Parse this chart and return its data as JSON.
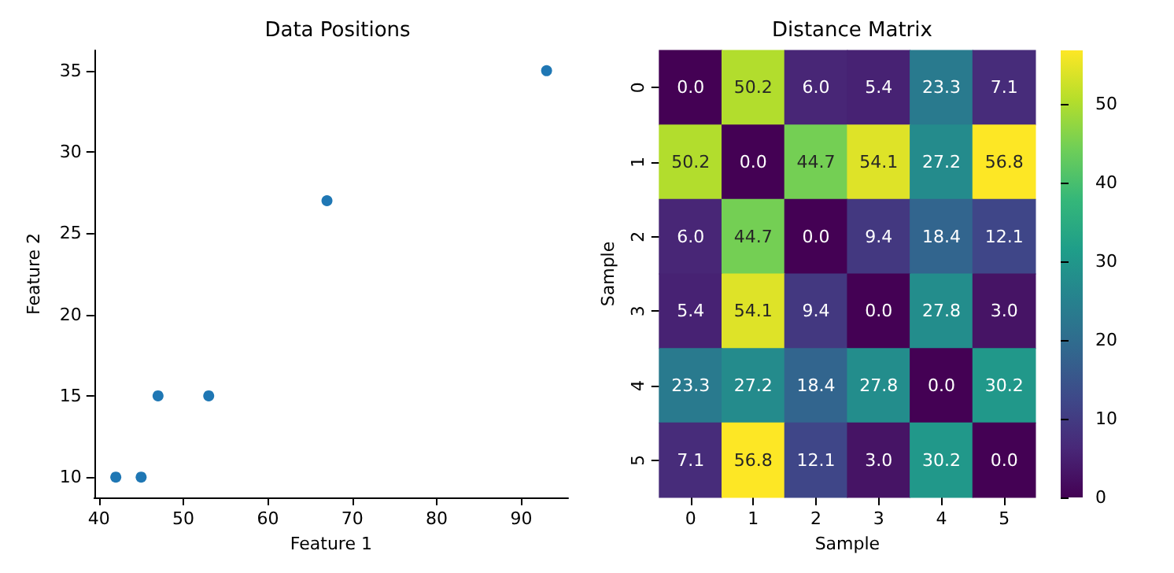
{
  "chart_data": [
    {
      "type": "scatter",
      "title": "Data Positions",
      "xlabel": "Feature 1",
      "ylabel": "Feature 2",
      "x": [
        42,
        45,
        47,
        53,
        67,
        93
      ],
      "values": [
        10,
        10,
        15,
        15,
        27,
        35
      ],
      "color": "#1f77b4",
      "xlim": [
        39.45,
        95.55
      ],
      "ylim": [
        8.75,
        36.25
      ],
      "xticks": [
        40,
        50,
        60,
        70,
        80,
        90
      ],
      "yticks": [
        10,
        15,
        20,
        25,
        30,
        35
      ],
      "marker": "circle"
    },
    {
      "type": "heatmap",
      "title": "Distance Matrix",
      "xlabel": "Sample",
      "ylabel": "Sample",
      "categories": [
        "0",
        "1",
        "2",
        "3",
        "4",
        "5"
      ],
      "y_categories": [
        "0",
        "1",
        "2",
        "3",
        "4",
        "5"
      ],
      "cells": [
        [
          0.0,
          50.2,
          6.0,
          5.4,
          23.3,
          7.1
        ],
        [
          50.2,
          0.0,
          44.7,
          54.1,
          27.2,
          56.8
        ],
        [
          6.0,
          44.7,
          0.0,
          9.4,
          18.4,
          12.1
        ],
        [
          5.4,
          54.1,
          9.4,
          0.0,
          27.8,
          3.0
        ],
        [
          23.3,
          27.2,
          18.4,
          27.8,
          0.0,
          30.2
        ],
        [
          7.1,
          56.8,
          12.1,
          3.0,
          30.2,
          0.0
        ]
      ],
      "cell_labels": [
        [
          "0.0",
          "50.2",
          "6.0",
          "5.4",
          "23.3",
          "7.1"
        ],
        [
          "50.2",
          "0.0",
          "44.7",
          "54.1",
          "27.2",
          "56.8"
        ],
        [
          "6.0",
          "44.7",
          "0.0",
          "9.4",
          "18.4",
          "12.1"
        ],
        [
          "5.4",
          "54.1",
          "9.4",
          "0.0",
          "27.8",
          "3.0"
        ],
        [
          "23.3",
          "27.2",
          "18.4",
          "27.8",
          "0.0",
          "30.2"
        ],
        [
          "7.1",
          "56.8",
          "12.1",
          "3.0",
          "30.2",
          "0.0"
        ]
      ],
      "clim": [
        0,
        56.8
      ],
      "cticks": [
        0,
        10,
        20,
        30,
        40,
        50
      ]
    }
  ]
}
